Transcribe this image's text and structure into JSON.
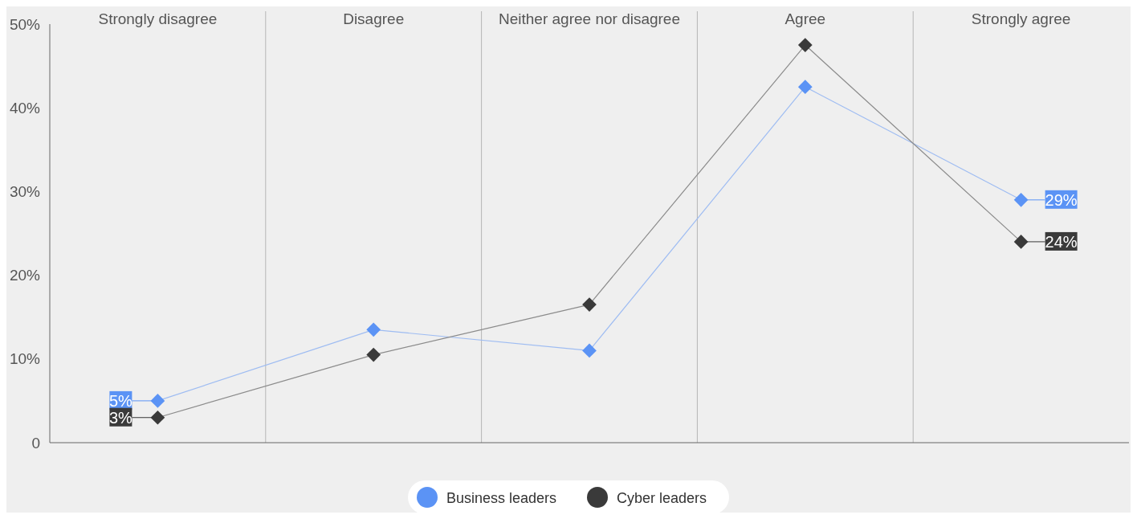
{
  "chart_data": {
    "type": "line",
    "categories": [
      "Strongly disagree",
      "Disagree",
      "Neither agree nor disagree",
      "Agree",
      "Strongly agree"
    ],
    "series": [
      {
        "name": "Business leaders",
        "color": "#5b93f5",
        "values": [
          5,
          13.5,
          11,
          42.5,
          29
        ],
        "value_labels": [
          "5%",
          null,
          null,
          null,
          "29%"
        ]
      },
      {
        "name": "Cyber leaders",
        "color": "#3a3a3a",
        "values": [
          3,
          10.5,
          16.5,
          47.5,
          24
        ],
        "value_labels": [
          "3%",
          null,
          null,
          null,
          "24%"
        ]
      }
    ],
    "ylim": [
      0,
      50
    ],
    "yticks": [
      0,
      {
        "value": 10,
        "label": "10%"
      },
      {
        "value": 20,
        "label": "20%"
      },
      {
        "value": 30,
        "label": "30%"
      },
      {
        "value": 40,
        "label": "40%"
      },
      {
        "value": 50,
        "label": "50%"
      }
    ],
    "grid": "x",
    "legend": "bottom",
    "marker": "diamond",
    "line_style": "solid"
  }
}
